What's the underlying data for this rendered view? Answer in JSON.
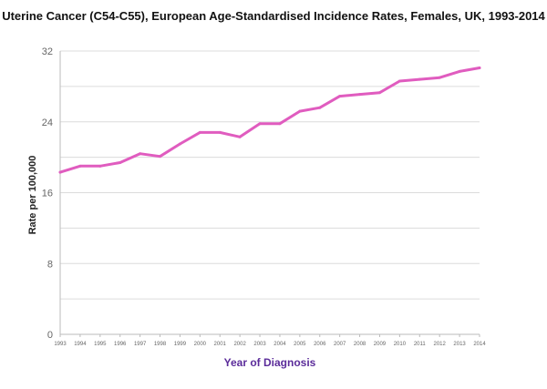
{
  "chart_data": {
    "type": "line",
    "title": "Uterine Cancer (C54-C55), European Age-Standardised Incidence Rates, Females, UK, 1993-2014",
    "xlabel": "Year of Diagnosis",
    "ylabel": "Rate per 100,000",
    "ylim": [
      0,
      32
    ],
    "yticks": [
      0,
      8,
      16,
      24,
      32
    ],
    "grid": true,
    "categories": [
      "1993",
      "1994",
      "1995",
      "1996",
      "1997",
      "1998",
      "1999",
      "2000",
      "2001",
      "2002",
      "2003",
      "2004",
      "2005",
      "2006",
      "2007",
      "2008",
      "2009",
      "2010",
      "2011",
      "2012",
      "2013",
      "2014"
    ],
    "series": [
      {
        "name": "Females",
        "color": "#e05cbf",
        "values": [
          18.3,
          19.0,
          19.0,
          19.4,
          20.4,
          20.1,
          21.5,
          22.8,
          22.8,
          22.3,
          23.8,
          23.8,
          25.2,
          25.6,
          26.9,
          27.1,
          27.3,
          28.6,
          28.8,
          29.0,
          29.7,
          30.1
        ]
      }
    ]
  }
}
